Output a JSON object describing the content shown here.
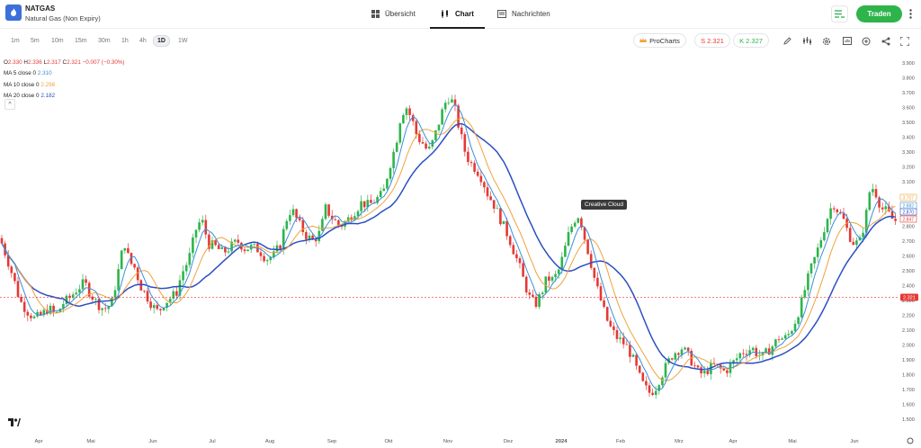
{
  "header": {
    "symbol": "NATGAS",
    "name": "Natural Gas (Non Expiry)",
    "tabs": [
      {
        "label": "Übersicht",
        "icon": "grid-icon",
        "active": false
      },
      {
        "label": "Chart",
        "icon": "candles-icon",
        "active": true
      },
      {
        "label": "Nachrichten",
        "icon": "news-icon",
        "active": false
      }
    ],
    "trade_label": "Traden"
  },
  "toolbar": {
    "timeframes": [
      "1m",
      "5m",
      "10m",
      "15m",
      "30m",
      "1h",
      "4h",
      "1D",
      "1W"
    ],
    "active_timeframe": "1D",
    "procharts_label": "ProCharts",
    "sell_label": "S 2.321",
    "buy_label": "K 2.327",
    "tools": [
      "pencil-icon",
      "indicators-icon",
      "settings-icon",
      "chart-type-icon",
      "add-icon",
      "share-icon",
      "fullscreen-icon"
    ]
  },
  "legend": {
    "o_label": "O",
    "o_value": "2.330",
    "h_label": "H",
    "h_value": "2.336",
    "l_label": "L",
    "l_value": "2.317",
    "c_label": "C",
    "c_value": "2.321",
    "change": "−0.007 (−0.30%)",
    "ma5_label": "MA 5 close 0",
    "ma5_value": "2.310",
    "ma10_label": "MA 10 close 0",
    "ma10_value": "2.298",
    "ma20_label": "MA 20 close 0",
    "ma20_value": "2.182"
  },
  "tooltip": "Creative Cloud",
  "colors": {
    "up": "#2eb44b",
    "down": "#e53935",
    "ma5": "#3a8fd8",
    "ma10": "#f0a23b",
    "ma20": "#2a4fc4",
    "brand": "#3d6fd8"
  },
  "chart_data": {
    "type": "candlestick",
    "y_axis": {
      "min": 1.5,
      "max": 3.9,
      "ticks": [
        "3.900",
        "3.800",
        "3.700",
        "3.600",
        "3.500",
        "3.400",
        "3.300",
        "3.200",
        "3.100",
        "3.000",
        "2.900",
        "2.800",
        "2.700",
        "2.600",
        "2.500",
        "2.400",
        "2.300",
        "2.200",
        "2.100",
        "2.000",
        "1.900",
        "1.800",
        "1.700",
        "1.600",
        "1.500"
      ]
    },
    "x_axis": {
      "labels": [
        "Apr",
        "Mai",
        "Jun",
        "Jul",
        "Aug",
        "Sep",
        "Okt",
        "Nov",
        "Dez",
        "2024",
        "Feb",
        "Mrz",
        "Apr",
        "Mai",
        "Jun"
      ]
    },
    "last_price": "2.321",
    "right_labels": [
      {
        "text": "3.707",
        "value": 3.707,
        "color": "#f0a23b"
      },
      {
        "text": "2.882",
        "value": 2.882,
        "color": "#3a8fd8"
      },
      {
        "text": "2.870",
        "value": 2.87,
        "color": "#2a4fc4"
      },
      {
        "text": "2.847",
        "value": 2.847,
        "color": "#e53935"
      }
    ],
    "path": [
      [
        0,
        2.72
      ],
      [
        8,
        2.58
      ],
      [
        15,
        2.45
      ],
      [
        22,
        2.3
      ],
      [
        30,
        2.23
      ],
      [
        38,
        2.18
      ],
      [
        46,
        2.2
      ],
      [
        54,
        2.25
      ],
      [
        62,
        2.2
      ],
      [
        70,
        2.28
      ],
      [
        78,
        2.32
      ],
      [
        86,
        2.38
      ],
      [
        94,
        2.42
      ],
      [
        100,
        2.35
      ],
      [
        108,
        2.28
      ],
      [
        116,
        2.24
      ],
      [
        124,
        2.28
      ],
      [
        130,
        2.45
      ],
      [
        138,
        2.7
      ],
      [
        144,
        2.56
      ],
      [
        150,
        2.52
      ],
      [
        156,
        2.4
      ],
      [
        164,
        2.32
      ],
      [
        170,
        2.26
      ],
      [
        176,
        2.22
      ],
      [
        182,
        2.28
      ],
      [
        190,
        2.32
      ],
      [
        196,
        2.35
      ],
      [
        202,
        2.48
      ],
      [
        210,
        2.58
      ],
      [
        218,
        2.78
      ],
      [
        224,
        2.85
      ],
      [
        232,
        2.68
      ],
      [
        240,
        2.66
      ],
      [
        248,
        2.62
      ],
      [
        256,
        2.66
      ],
      [
        264,
        2.7
      ],
      [
        272,
        2.65
      ],
      [
        280,
        2.66
      ],
      [
        288,
        2.64
      ],
      [
        296,
        2.58
      ],
      [
        304,
        2.6
      ],
      [
        312,
        2.68
      ],
      [
        318,
        2.84
      ],
      [
        324,
        2.92
      ],
      [
        332,
        2.82
      ],
      [
        340,
        2.74
      ],
      [
        348,
        2.7
      ],
      [
        356,
        2.76
      ],
      [
        362,
        2.92
      ],
      [
        370,
        2.85
      ],
      [
        378,
        2.8
      ],
      [
        386,
        2.84
      ],
      [
        394,
        2.9
      ],
      [
        402,
        2.96
      ],
      [
        410,
        2.94
      ],
      [
        418,
        2.98
      ],
      [
        426,
        3.02
      ],
      [
        432,
        3.18
      ],
      [
        440,
        3.35
      ],
      [
        446,
        3.56
      ],
      [
        452,
        3.6
      ],
      [
        458,
        3.52
      ],
      [
        464,
        3.4
      ],
      [
        470,
        3.36
      ],
      [
        476,
        3.3
      ],
      [
        482,
        3.38
      ],
      [
        488,
        3.5
      ],
      [
        494,
        3.62
      ],
      [
        500,
        3.68
      ],
      [
        506,
        3.58
      ],
      [
        512,
        3.42
      ],
      [
        518,
        3.28
      ],
      [
        524,
        3.22
      ],
      [
        530,
        3.18
      ],
      [
        536,
        3.12
      ],
      [
        542,
        3.02
      ],
      [
        548,
        2.96
      ],
      [
        554,
        2.88
      ],
      [
        560,
        2.8
      ],
      [
        566,
        2.72
      ],
      [
        572,
        2.62
      ],
      [
        578,
        2.52
      ],
      [
        584,
        2.4
      ],
      [
        590,
        2.3
      ],
      [
        596,
        2.28
      ],
      [
        602,
        2.35
      ],
      [
        608,
        2.45
      ],
      [
        614,
        2.44
      ],
      [
        620,
        2.48
      ],
      [
        626,
        2.6
      ],
      [
        632,
        2.74
      ],
      [
        638,
        2.84
      ],
      [
        644,
        2.88
      ],
      [
        650,
        2.72
      ],
      [
        656,
        2.58
      ],
      [
        662,
        2.42
      ],
      [
        668,
        2.3
      ],
      [
        674,
        2.18
      ],
      [
        680,
        2.1
      ],
      [
        686,
        2.05
      ],
      [
        692,
        2.02
      ],
      [
        698,
        1.98
      ],
      [
        704,
        1.9
      ],
      [
        710,
        1.8
      ],
      [
        716,
        1.72
      ],
      [
        722,
        1.68
      ],
      [
        728,
        1.7
      ],
      [
        734,
        1.78
      ],
      [
        740,
        1.85
      ],
      [
        746,
        1.92
      ],
      [
        752,
        1.96
      ],
      [
        758,
        1.98
      ],
      [
        764,
        1.94
      ],
      [
        770,
        1.88
      ],
      [
        776,
        1.82
      ],
      [
        782,
        1.8
      ],
      [
        788,
        1.84
      ],
      [
        794,
        1.86
      ],
      [
        800,
        1.84
      ],
      [
        806,
        1.82
      ],
      [
        812,
        1.86
      ],
      [
        818,
        1.9
      ],
      [
        824,
        1.95
      ],
      [
        830,
        1.96
      ],
      [
        836,
        1.98
      ],
      [
        842,
        1.94
      ],
      [
        848,
        1.92
      ],
      [
        854,
        1.96
      ],
      [
        860,
        2.0
      ],
      [
        866,
        2.05
      ],
      [
        872,
        2.04
      ],
      [
        878,
        2.08
      ],
      [
        884,
        2.16
      ],
      [
        890,
        2.26
      ],
      [
        896,
        2.4
      ],
      [
        902,
        2.52
      ],
      [
        908,
        2.62
      ],
      [
        914,
        2.74
      ],
      [
        920,
        2.86
      ],
      [
        926,
        2.96
      ],
      [
        932,
        2.9
      ],
      [
        938,
        2.84
      ],
      [
        944,
        2.74
      ],
      [
        950,
        2.68
      ],
      [
        956,
        2.7
      ],
      [
        962,
        2.84
      ],
      [
        968,
        3.08
      ],
      [
        974,
        3.02
      ],
      [
        980,
        2.92
      ],
      [
        986,
        2.9
      ],
      [
        992,
        2.85
      ],
      [
        998,
        2.83
      ]
    ]
  }
}
